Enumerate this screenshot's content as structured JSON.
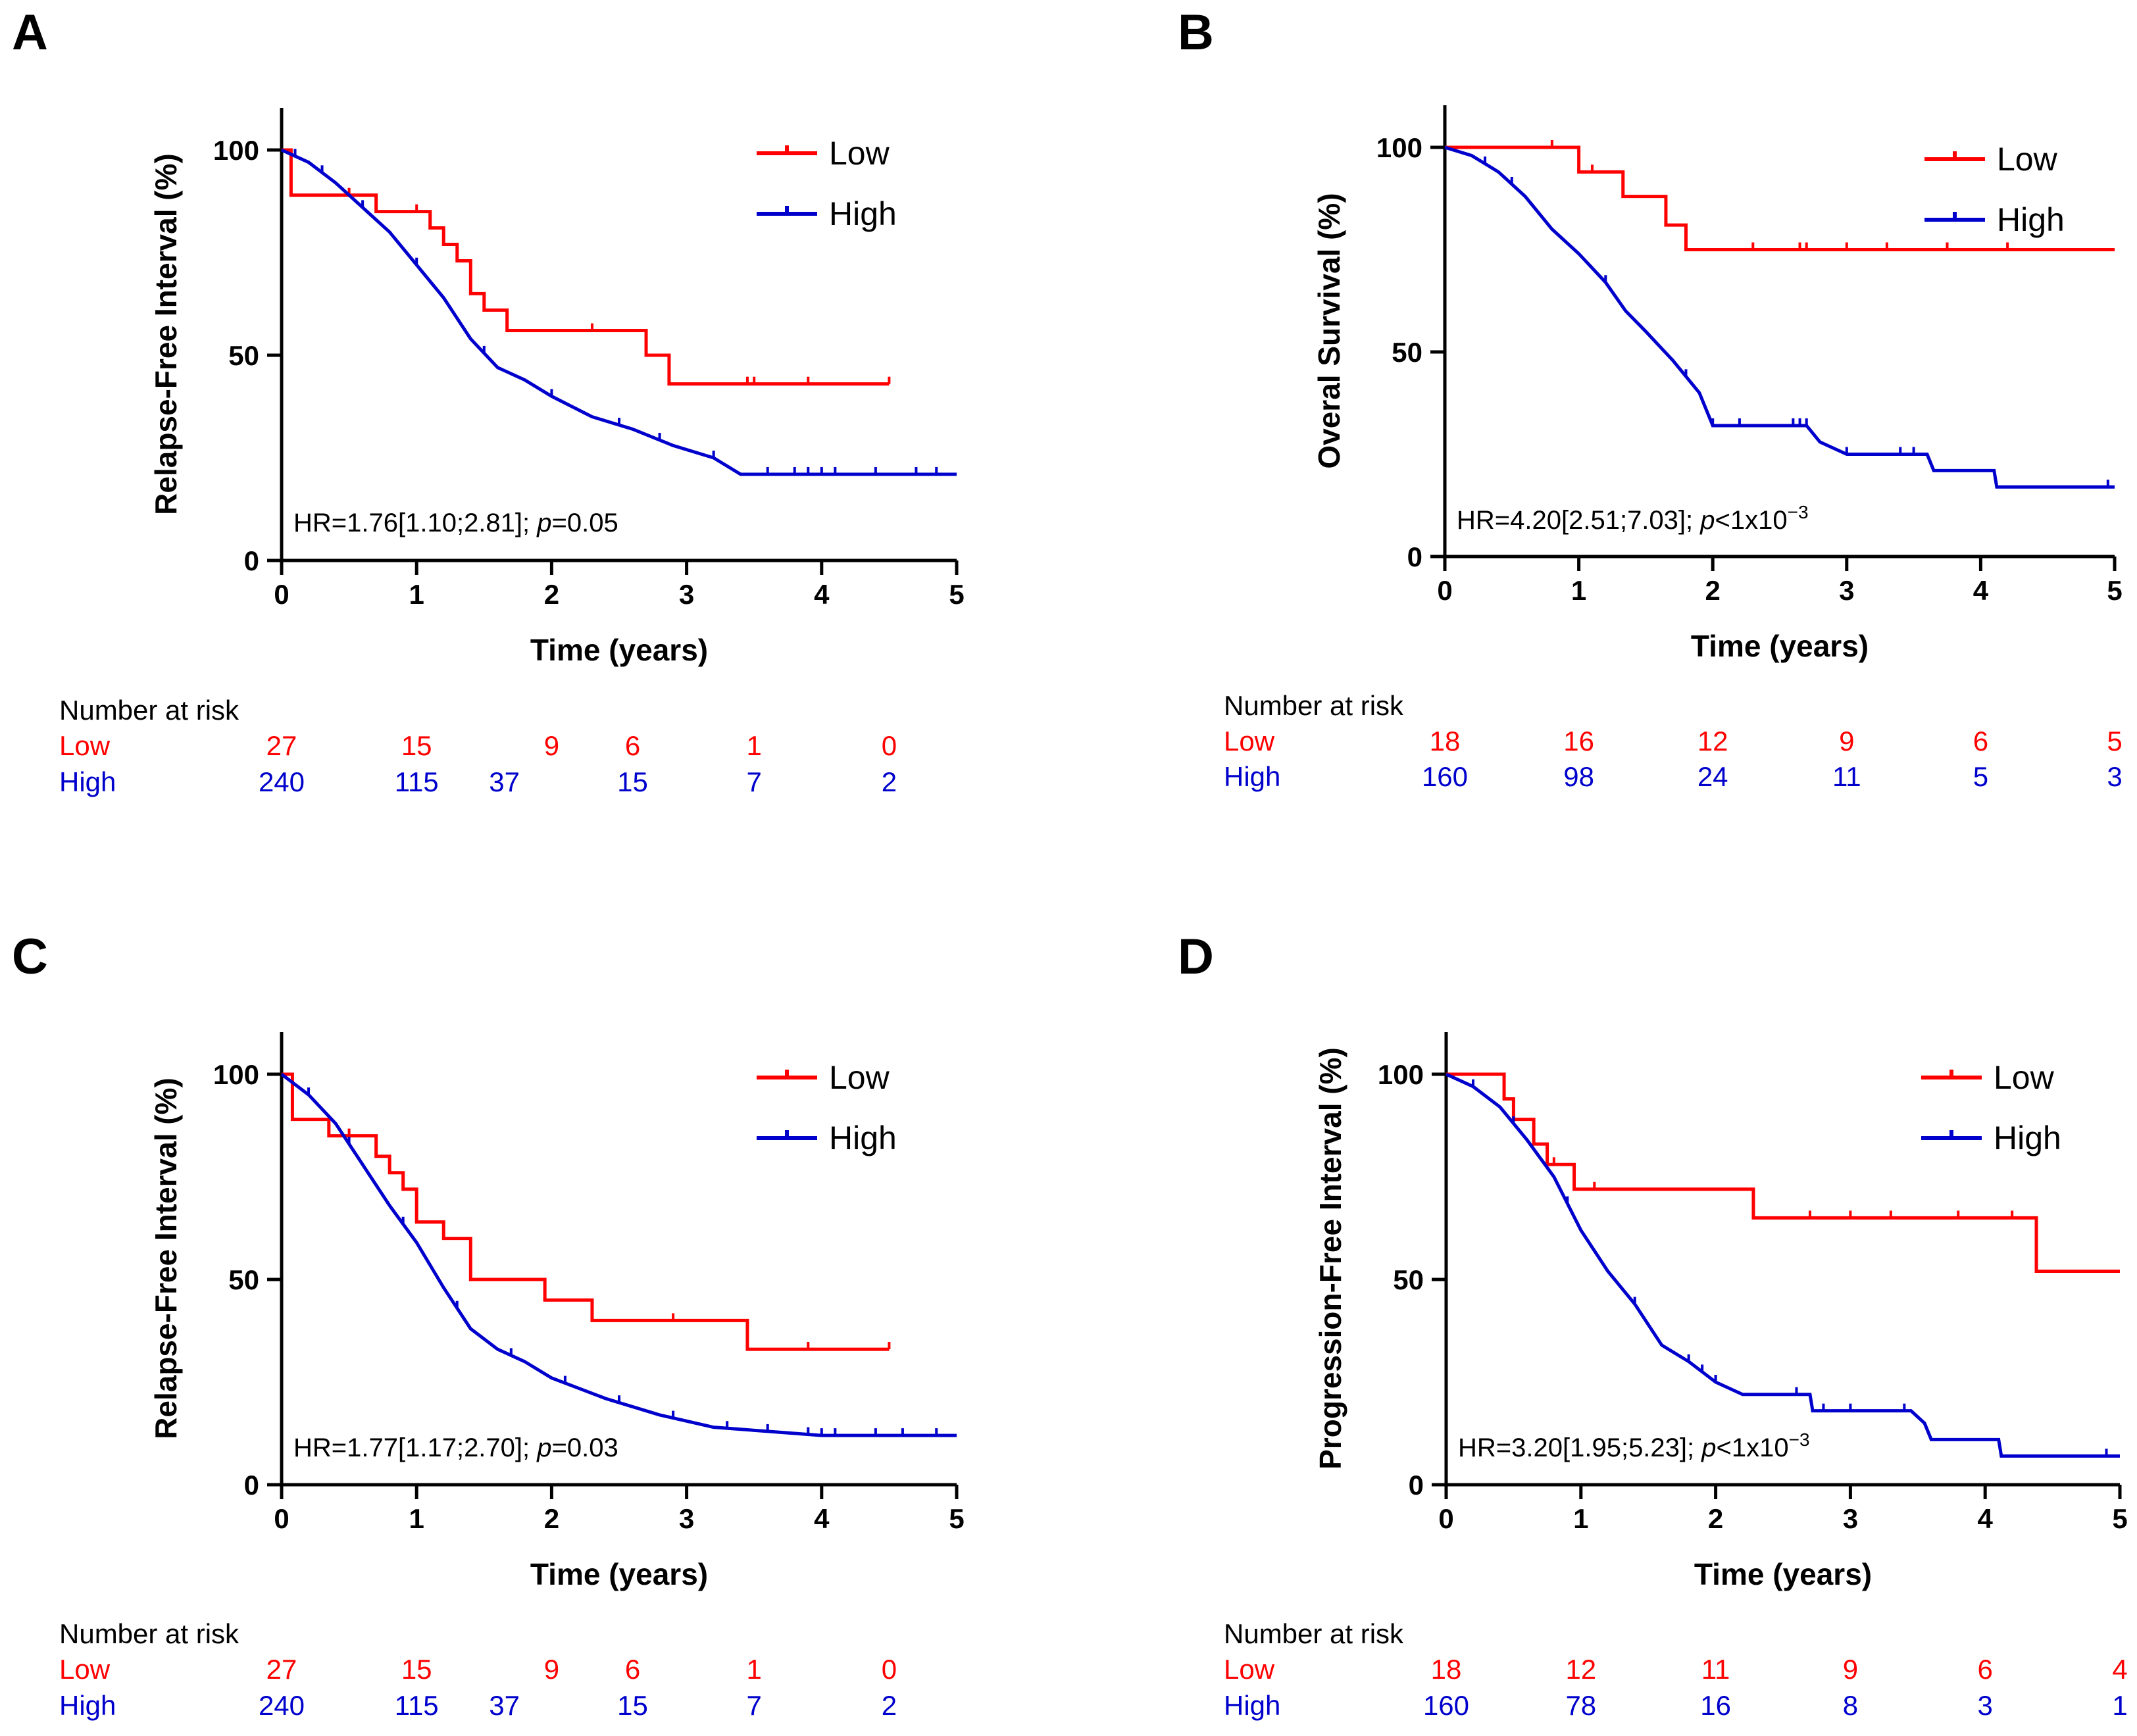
{
  "colors": {
    "low": "#ff0000",
    "high": "#0000cc",
    "axis": "#000000"
  },
  "chart_data": [
    {
      "type": "line",
      "panel_label": "A",
      "xlabel": "Time (years)",
      "ylabel": "Relapse-Free Interval (%)",
      "xlim": [
        0,
        5
      ],
      "ylim": [
        0,
        100
      ],
      "xticks": [
        "0",
        "1",
        "2",
        "3",
        "4",
        "5"
      ],
      "yticks": [
        "0",
        "50",
        "100"
      ],
      "legend": [
        "Low",
        "High"
      ],
      "annotation": {
        "prefix": "HR=1.76[1.10;2.81]; ",
        "pvar": "p",
        "value": "=0.05",
        "sup": ""
      },
      "series": [
        {
          "name": "Low",
          "color": "#ff0000",
          "steps": [
            [
              0,
              100
            ],
            [
              0.07,
              89
            ],
            [
              0.7,
              85
            ],
            [
              1.1,
              81
            ],
            [
              1.2,
              77
            ],
            [
              1.3,
              73
            ],
            [
              1.4,
              65
            ],
            [
              1.5,
              61
            ],
            [
              1.67,
              56
            ],
            [
              2.7,
              50
            ],
            [
              2.87,
              43
            ],
            [
              5,
              43
            ]
          ],
          "end": 4.5,
          "censors": [
            0.5,
            1.0,
            1.1,
            2.3,
            3.45,
            3.5,
            3.9,
            4.5
          ]
        },
        {
          "name": "High",
          "color": "#0000cc",
          "points": [
            [
              0,
              100
            ],
            [
              0.2,
              97
            ],
            [
              0.4,
              92
            ],
            [
              0.6,
              86
            ],
            [
              0.8,
              80
            ],
            [
              1.0,
              72
            ],
            [
              1.2,
              64
            ],
            [
              1.4,
              54
            ],
            [
              1.6,
              47
            ],
            [
              1.8,
              44
            ],
            [
              2.0,
              40
            ],
            [
              2.3,
              35
            ],
            [
              2.6,
              32
            ],
            [
              2.9,
              28
            ],
            [
              3.2,
              25
            ],
            [
              3.4,
              21
            ],
            [
              5,
              21
            ]
          ],
          "end": 5.0,
          "censors": [
            0.1,
            0.3,
            0.6,
            1.0,
            1.5,
            2.0,
            2.5,
            2.8,
            3.2,
            3.6,
            3.8,
            3.9,
            4.0,
            4.1,
            4.4,
            4.7,
            4.85
          ]
        }
      ],
      "risk_table": {
        "title": "Number at risk",
        "rows": [
          {
            "name": "Low",
            "values": [
              "27",
              "15",
              "9",
              "6",
              "1",
              "0"
            ],
            "x": [
              0,
              1,
              2,
              2.6,
              3.5,
              4.5
            ]
          },
          {
            "name": "High",
            "values": [
              "240",
              "115",
              "37",
              "15",
              "7",
              "2"
            ],
            "x": [
              0,
              1,
              1.65,
              2.6,
              3.5,
              4.5
            ]
          }
        ]
      }
    },
    {
      "type": "line",
      "panel_label": "B",
      "xlabel": "Time (years)",
      "ylabel": "Overal Survival (%)",
      "xlim": [
        0,
        5
      ],
      "ylim": [
        0,
        100
      ],
      "xticks": [
        "0",
        "1",
        "2",
        "3",
        "4",
        "5"
      ],
      "yticks": [
        "0",
        "50",
        "100"
      ],
      "legend": [
        "Low",
        "High"
      ],
      "annotation": {
        "prefix": "HR=4.20[2.51;7.03]; ",
        "pvar": "p",
        "value": "<1x10",
        "sup": "−3"
      },
      "series": [
        {
          "name": "Low",
          "color": "#ff0000",
          "steps": [
            [
              0,
              100
            ],
            [
              1.0,
              94
            ],
            [
              1.33,
              88
            ],
            [
              1.65,
              81
            ],
            [
              1.8,
              75
            ],
            [
              5,
              75
            ]
          ],
          "end": 5.0,
          "censors": [
            0.8,
            1.1,
            2.3,
            2.65,
            2.7,
            3.0,
            3.3,
            3.75,
            4.2
          ]
        },
        {
          "name": "High",
          "color": "#0000cc",
          "points": [
            [
              0,
              100
            ],
            [
              0.2,
              98
            ],
            [
              0.4,
              94
            ],
            [
              0.6,
              88
            ],
            [
              0.8,
              80
            ],
            [
              1.0,
              74
            ],
            [
              1.2,
              67
            ],
            [
              1.35,
              60
            ],
            [
              1.5,
              55
            ],
            [
              1.7,
              48
            ],
            [
              1.9,
              40
            ],
            [
              2.0,
              32
            ],
            [
              2.7,
              32
            ],
            [
              2.8,
              28
            ],
            [
              3.0,
              25
            ],
            [
              3.6,
              25
            ],
            [
              3.65,
              21
            ],
            [
              4.1,
              21
            ],
            [
              4.12,
              17
            ],
            [
              5,
              17
            ]
          ],
          "end": 5.0,
          "censors": [
            0.3,
            0.5,
            1.2,
            1.8,
            2.0,
            2.2,
            2.6,
            2.65,
            2.7,
            3.0,
            3.4,
            3.5,
            4.95
          ]
        }
      ],
      "risk_table": {
        "title": "Number at risk",
        "rows": [
          {
            "name": "Low",
            "values": [
              "18",
              "16",
              "12",
              "9",
              "6",
              "5"
            ],
            "x": [
              0,
              1,
              2,
              3,
              4,
              5
            ]
          },
          {
            "name": "High",
            "values": [
              "160",
              "98",
              "24",
              "11",
              "5",
              "3"
            ],
            "x": [
              0,
              1,
              2,
              3,
              4,
              5
            ]
          }
        ]
      }
    },
    {
      "type": "line",
      "panel_label": "C",
      "xlabel": "Time (years)",
      "ylabel": "Relapse-Free Interval (%)",
      "xlim": [
        0,
        5
      ],
      "ylim": [
        0,
        100
      ],
      "xticks": [
        "0",
        "1",
        "2",
        "3",
        "4",
        "5"
      ],
      "yticks": [
        "0",
        "50",
        "100"
      ],
      "legend": [
        "Low",
        "High"
      ],
      "annotation": {
        "prefix": "HR=1.77[1.17;2.70]; ",
        "pvar": "p",
        "value": "=0.03",
        "sup": ""
      },
      "series": [
        {
          "name": "Low",
          "color": "#ff0000",
          "steps": [
            [
              0,
              100
            ],
            [
              0.08,
              89
            ],
            [
              0.35,
              85
            ],
            [
              0.7,
              80
            ],
            [
              0.8,
              76
            ],
            [
              0.9,
              72
            ],
            [
              1.0,
              64
            ],
            [
              1.2,
              60
            ],
            [
              1.4,
              50
            ],
            [
              1.95,
              45
            ],
            [
              2.3,
              40
            ],
            [
              3.45,
              33
            ],
            [
              5,
              33
            ]
          ],
          "end": 4.5,
          "censors": [
            0.5,
            0.7,
            1.0,
            1.4,
            2.3,
            2.9,
            3.9,
            4.5
          ]
        },
        {
          "name": "High",
          "color": "#0000cc",
          "points": [
            [
              0,
              100
            ],
            [
              0.2,
              95
            ],
            [
              0.4,
              88
            ],
            [
              0.6,
              78
            ],
            [
              0.8,
              68
            ],
            [
              1.0,
              59
            ],
            [
              1.2,
              48
            ],
            [
              1.4,
              38
            ],
            [
              1.6,
              33
            ],
            [
              1.8,
              30
            ],
            [
              2.0,
              26
            ],
            [
              2.4,
              21
            ],
            [
              2.8,
              17
            ],
            [
              3.2,
              14
            ],
            [
              3.6,
              13
            ],
            [
              4.0,
              12
            ],
            [
              5,
              12
            ]
          ],
          "end": 5.0,
          "censors": [
            0.2,
            0.5,
            0.9,
            1.3,
            1.7,
            2.1,
            2.5,
            2.9,
            3.3,
            3.6,
            3.9,
            4.0,
            4.1,
            4.4,
            4.6,
            4.85
          ]
        }
      ],
      "risk_table": {
        "title": "Number at risk",
        "rows": [
          {
            "name": "Low",
            "values": [
              "27",
              "15",
              "9",
              "6",
              "1",
              "0"
            ],
            "x": [
              0,
              1,
              2,
              2.6,
              3.5,
              4.5
            ]
          },
          {
            "name": "High",
            "values": [
              "240",
              "115",
              "37",
              "15",
              "7",
              "2"
            ],
            "x": [
              0,
              1,
              1.65,
              2.6,
              3.5,
              4.5
            ]
          }
        ]
      }
    },
    {
      "type": "line",
      "panel_label": "D",
      "xlabel": "Time (years)",
      "ylabel": "Progression-Free Interval (%)",
      "xlim": [
        0,
        5
      ],
      "ylim": [
        0,
        100
      ],
      "xticks": [
        "0",
        "1",
        "2",
        "3",
        "4",
        "5"
      ],
      "yticks": [
        "0",
        "50",
        "100"
      ],
      "legend": [
        "Low",
        "High"
      ],
      "annotation": {
        "prefix": "HR=3.20[1.95;5.23]; ",
        "pvar": "p",
        "value": "<1x10",
        "sup": "−3"
      },
      "series": [
        {
          "name": "Low",
          "color": "#ff0000",
          "steps": [
            [
              0,
              100
            ],
            [
              0.43,
              94
            ],
            [
              0.5,
              89
            ],
            [
              0.65,
              83
            ],
            [
              0.75,
              78
            ],
            [
              0.95,
              72
            ],
            [
              2.28,
              65
            ],
            [
              4.38,
              52
            ],
            [
              5,
              52
            ]
          ],
          "end": 5.0,
          "censors": [
            0.8,
            1.1,
            2.7,
            3.0,
            3.3,
            3.8,
            4.2
          ]
        },
        {
          "name": "High",
          "color": "#0000cc",
          "points": [
            [
              0,
              100
            ],
            [
              0.2,
              97
            ],
            [
              0.4,
              92
            ],
            [
              0.6,
              84
            ],
            [
              0.8,
              75
            ],
            [
              1.0,
              62
            ],
            [
              1.2,
              52
            ],
            [
              1.4,
              44
            ],
            [
              1.6,
              34
            ],
            [
              1.8,
              30
            ],
            [
              2.0,
              25
            ],
            [
              2.2,
              22
            ],
            [
              2.7,
              22
            ],
            [
              2.72,
              18
            ],
            [
              3.45,
              18
            ],
            [
              3.55,
              15
            ],
            [
              3.6,
              11
            ],
            [
              4.1,
              11
            ],
            [
              4.12,
              7
            ],
            [
              5,
              7
            ]
          ],
          "end": 5.0,
          "censors": [
            0.2,
            0.5,
            0.9,
            1.4,
            1.8,
            1.9,
            2.0,
            2.6,
            2.8,
            3.0,
            3.4,
            4.9
          ]
        }
      ],
      "risk_table": {
        "title": "Number at risk",
        "rows": [
          {
            "name": "Low",
            "values": [
              "18",
              "12",
              "11",
              "9",
              "6",
              "4"
            ],
            "x": [
              0,
              1,
              2,
              3,
              4,
              5
            ]
          },
          {
            "name": "High",
            "values": [
              "160",
              "78",
              "16",
              "8",
              "3",
              "1"
            ],
            "x": [
              0,
              1,
              2,
              3,
              4,
              5
            ]
          }
        ]
      }
    }
  ]
}
